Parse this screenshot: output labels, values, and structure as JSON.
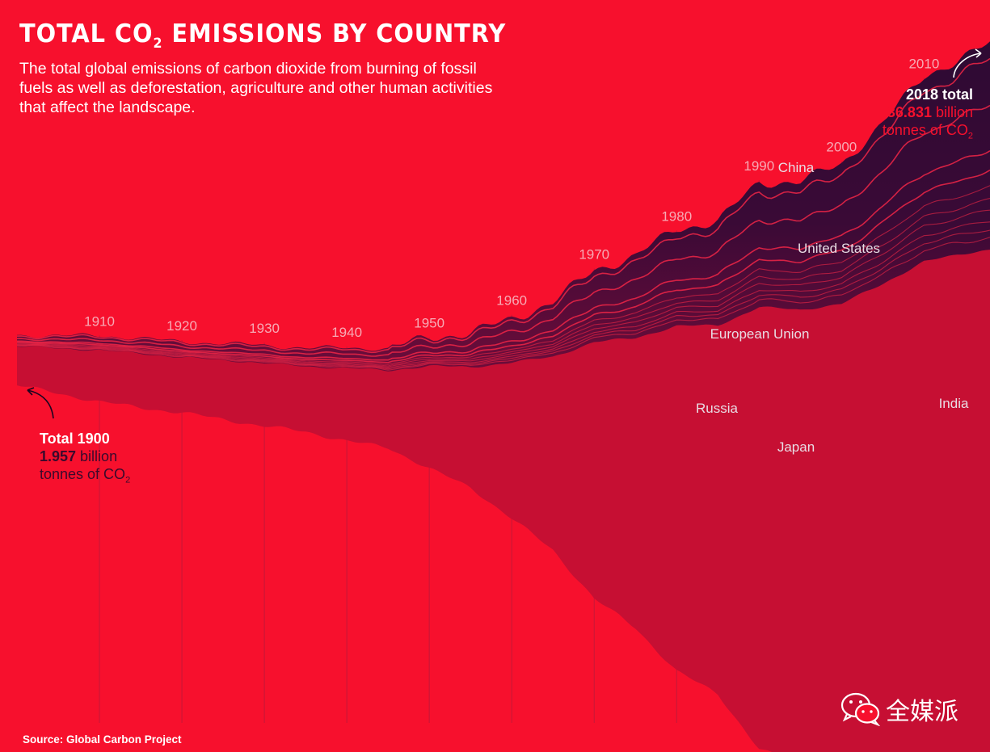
{
  "title_main": "TOTAL CO",
  "title_sub": "2",
  "title_rest": " EMISSIONS BY COUNTRY",
  "subtitle": "The total global emissions of carbon dioxide from burning of fossil fuels as well as deforestation, agriculture and other human activities that affect the landscape.",
  "source": "Source: Global Carbon Project",
  "watermark": {
    "icon": "wechat-icon",
    "text": "全媒派"
  },
  "annotation_start": {
    "label": "Total 1900",
    "value": "1.957",
    "unit_line1": " billion",
    "unit_line2": "tonnes of CO",
    "unit_sub": "2"
  },
  "annotation_end": {
    "label": "2018 total",
    "value": "36.831",
    "unit_line1": " billion",
    "unit_line2": "tonnes of CO",
    "unit_sub": "2"
  },
  "colors": {
    "background": "#f7102d",
    "top_band": "#2e0a33",
    "bottom_band": "#c60f33",
    "divider": "#f02646",
    "gridline": "#9c1e42",
    "year_label": "#f7aab5",
    "country_label": "#e8dce4"
  },
  "chart_data": {
    "type": "area",
    "subtype": "streamgraph",
    "x_range": [
      1900,
      2018
    ],
    "unit": "billion tonnes of CO2",
    "year_labels": [
      1910,
      1920,
      1930,
      1940,
      1950,
      1960,
      1970,
      1980,
      1990,
      2000,
      2010
    ],
    "total": {
      "x": [
        1900,
        1905,
        1910,
        1915,
        1920,
        1925,
        1930,
        1935,
        1940,
        1945,
        1950,
        1955,
        1960,
        1965,
        1970,
        1975,
        1980,
        1985,
        1990,
        1995,
        2000,
        2005,
        2010,
        2015,
        2018
      ],
      "y": [
        1.957,
        2.3,
        2.6,
        2.75,
        2.8,
        3.0,
        3.2,
        3.3,
        3.7,
        3.9,
        5.2,
        6.1,
        7.9,
        9.8,
        13.0,
        14.7,
        17.5,
        18.7,
        22.4,
        23.1,
        25.1,
        29.0,
        33.3,
        35.5,
        36.831
      ]
    },
    "labeled_countries": [
      "China",
      "United States",
      "European Union",
      "Russia",
      "Japan",
      "India"
    ]
  }
}
